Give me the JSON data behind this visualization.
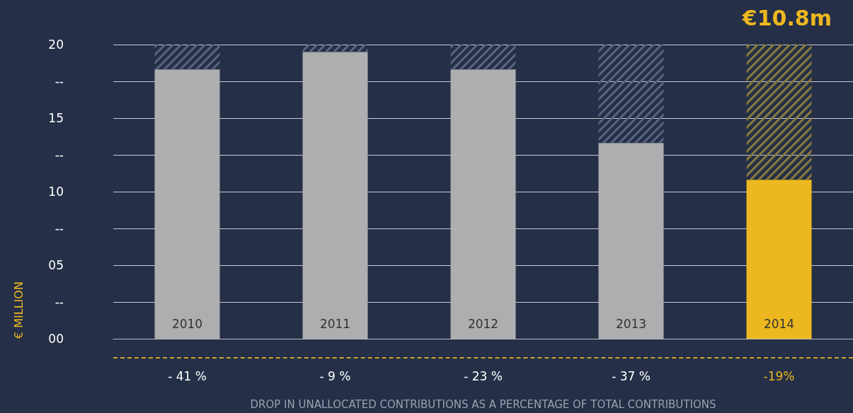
{
  "chart_data": {
    "type": "bar",
    "title": "€10.8m",
    "xlabel": "DROP IN UNALLOCATED CONTRIBUTIONS AS A PERCENTAGE OF TOTAL CONTRIBUTIONS",
    "ylabel": "€ MILLION",
    "categories": [
      "2010",
      "2011",
      "2012",
      "2013",
      "2014"
    ],
    "stacked": true,
    "series": [
      {
        "colors": [
          "#aeaeb0",
          "#aeaeb0",
          "#aeaeb0",
          "#aeaeb0",
          "#edb81f"
        ],
        "values": [
          18.3,
          19.5,
          18.3,
          13.3,
          10.8
        ]
      },
      {
        "colors": [
          "#5a6580",
          "#5a6580",
          "#5a6580",
          "#5a6580",
          "#8a7a3a"
        ],
        "values": [
          1.7,
          0.5,
          1.7,
          6.7,
          9.2
        ]
      }
    ],
    "ylim": [
      0,
      20
    ],
    "yticks": [
      {
        "value": 0,
        "label": "00"
      },
      {
        "value": 2.5,
        "label": "--"
      },
      {
        "value": 5,
        "label": "05"
      },
      {
        "value": 7.5,
        "label": "--"
      },
      10,
      {
        "value": 12.5,
        "label": "--"
      },
      15,
      {
        "value": 17.5,
        "label": "--"
      },
      20
    ],
    "grid": "y",
    "annotations": [
      "- 41 %",
      "- 9 %",
      "- 23 %",
      "- 37 %",
      "-19%"
    ]
  }
}
